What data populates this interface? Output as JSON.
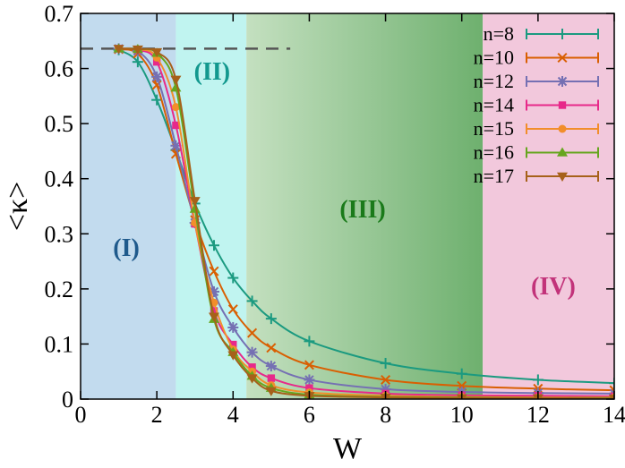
{
  "chart_data": {
    "type": "line",
    "xlabel": "W",
    "ylabel": "<κ>",
    "xlim": [
      0,
      14
    ],
    "ylim": [
      0,
      0.7
    ],
    "x_ticks": [
      0,
      2,
      4,
      6,
      8,
      10,
      12,
      14
    ],
    "y_ticks": [
      0,
      0.1,
      0.2,
      0.3,
      0.4,
      0.5,
      0.6,
      0.7
    ],
    "grid": false,
    "legend_placement": "top-right",
    "reference_line": {
      "y": 0.636,
      "x_range": [
        0,
        5.5
      ],
      "style": "dashed"
    },
    "regions": [
      {
        "label": "(I)",
        "x_range": [
          0,
          2.5
        ],
        "color": "#c2dbee",
        "label_color": "#1f5a8c",
        "label_pos": [
          1.2,
          0.26
        ]
      },
      {
        "label": "(II)",
        "x_range": [
          2.5,
          4.35
        ],
        "color": "#c0f4f0",
        "label_color": "#12988e",
        "label_pos": [
          3.45,
          0.58
        ]
      },
      {
        "label": "(III)",
        "x_range": [
          4.35,
          10.55
        ],
        "color": "#c4e0c0",
        "color_end": "#6eb06e",
        "label_color": "#1a7a1a",
        "label_pos": [
          7.4,
          0.33
        ]
      },
      {
        "label": "(IV)",
        "x_range": [
          10.55,
          14
        ],
        "color": "#f2c8dc",
        "label_color": "#c2337a",
        "label_pos": [
          12.4,
          0.19
        ]
      }
    ],
    "series": [
      {
        "name": "n=8",
        "color": "#1b9a80",
        "marker": "plus",
        "x": [
          1,
          1.5,
          2,
          2.5,
          3,
          3.5,
          4,
          4.5,
          5,
          6,
          8,
          10,
          12,
          14
        ],
        "y": [
          0.634,
          0.612,
          0.543,
          0.452,
          0.355,
          0.279,
          0.22,
          0.178,
          0.146,
          0.105,
          0.065,
          0.046,
          0.035,
          0.029
        ]
      },
      {
        "name": "n=10",
        "color": "#d95f02",
        "marker": "x",
        "x": [
          1,
          1.5,
          2,
          2.5,
          3,
          3.5,
          4,
          4.5,
          5,
          6,
          8,
          10,
          12,
          14
        ],
        "y": [
          0.635,
          0.627,
          0.57,
          0.445,
          0.325,
          0.232,
          0.163,
          0.12,
          0.093,
          0.062,
          0.035,
          0.024,
          0.019,
          0.016
        ]
      },
      {
        "name": "n=12",
        "color": "#7570b3",
        "marker": "star",
        "x": [
          1,
          1.5,
          2,
          2.5,
          3,
          3.5,
          4,
          4.5,
          5,
          6,
          8,
          10,
          12,
          14
        ],
        "y": [
          0.636,
          0.632,
          0.585,
          0.46,
          0.32,
          0.195,
          0.13,
          0.085,
          0.06,
          0.035,
          0.018,
          0.013,
          0.011,
          0.01
        ]
      },
      {
        "name": "n=14",
        "color": "#e7298a",
        "marker": "square",
        "x": [
          1,
          1.5,
          2,
          2.5,
          3,
          3.5,
          4,
          4.5,
          5,
          6,
          8,
          10,
          12,
          14
        ],
        "y": [
          0.636,
          0.634,
          0.612,
          0.497,
          0.318,
          0.16,
          0.099,
          0.058,
          0.038,
          0.02,
          0.01,
          0.007,
          0.006,
          0.005
        ]
      },
      {
        "name": "n=15",
        "color": "#f28e2b",
        "marker": "circle",
        "x": [
          1,
          1.5,
          2,
          2.5,
          3,
          3.5,
          4,
          4.5,
          5,
          6,
          8,
          10,
          12,
          14
        ],
        "y": [
          0.636,
          0.635,
          0.62,
          0.53,
          0.32,
          0.175,
          0.09,
          0.05,
          0.025,
          0.012,
          0.006,
          0.004,
          0.003,
          0.003
        ]
      },
      {
        "name": "n=16",
        "color": "#66a61e",
        "marker": "triangle",
        "x": [
          1,
          1.5,
          2,
          2.5,
          3,
          3.5,
          4,
          4.5,
          5,
          6,
          8,
          10,
          12,
          14
        ],
        "y": [
          0.636,
          0.635,
          0.628,
          0.565,
          0.345,
          0.145,
          0.085,
          0.042,
          0.02,
          0.008,
          0.004,
          0.003,
          0.002,
          0.002
        ]
      },
      {
        "name": "n=17",
        "color": "#a6611a",
        "marker": "triangle-down",
        "x": [
          1,
          1.5,
          2,
          2.5,
          3,
          3.5,
          4,
          4.5,
          5,
          6,
          8,
          10,
          12,
          14
        ],
        "y": [
          0.636,
          0.635,
          0.63,
          0.58,
          0.36,
          0.15,
          0.08,
          0.038,
          0.015,
          0.006,
          0.003,
          0.002,
          0.002,
          0.001
        ]
      }
    ]
  }
}
